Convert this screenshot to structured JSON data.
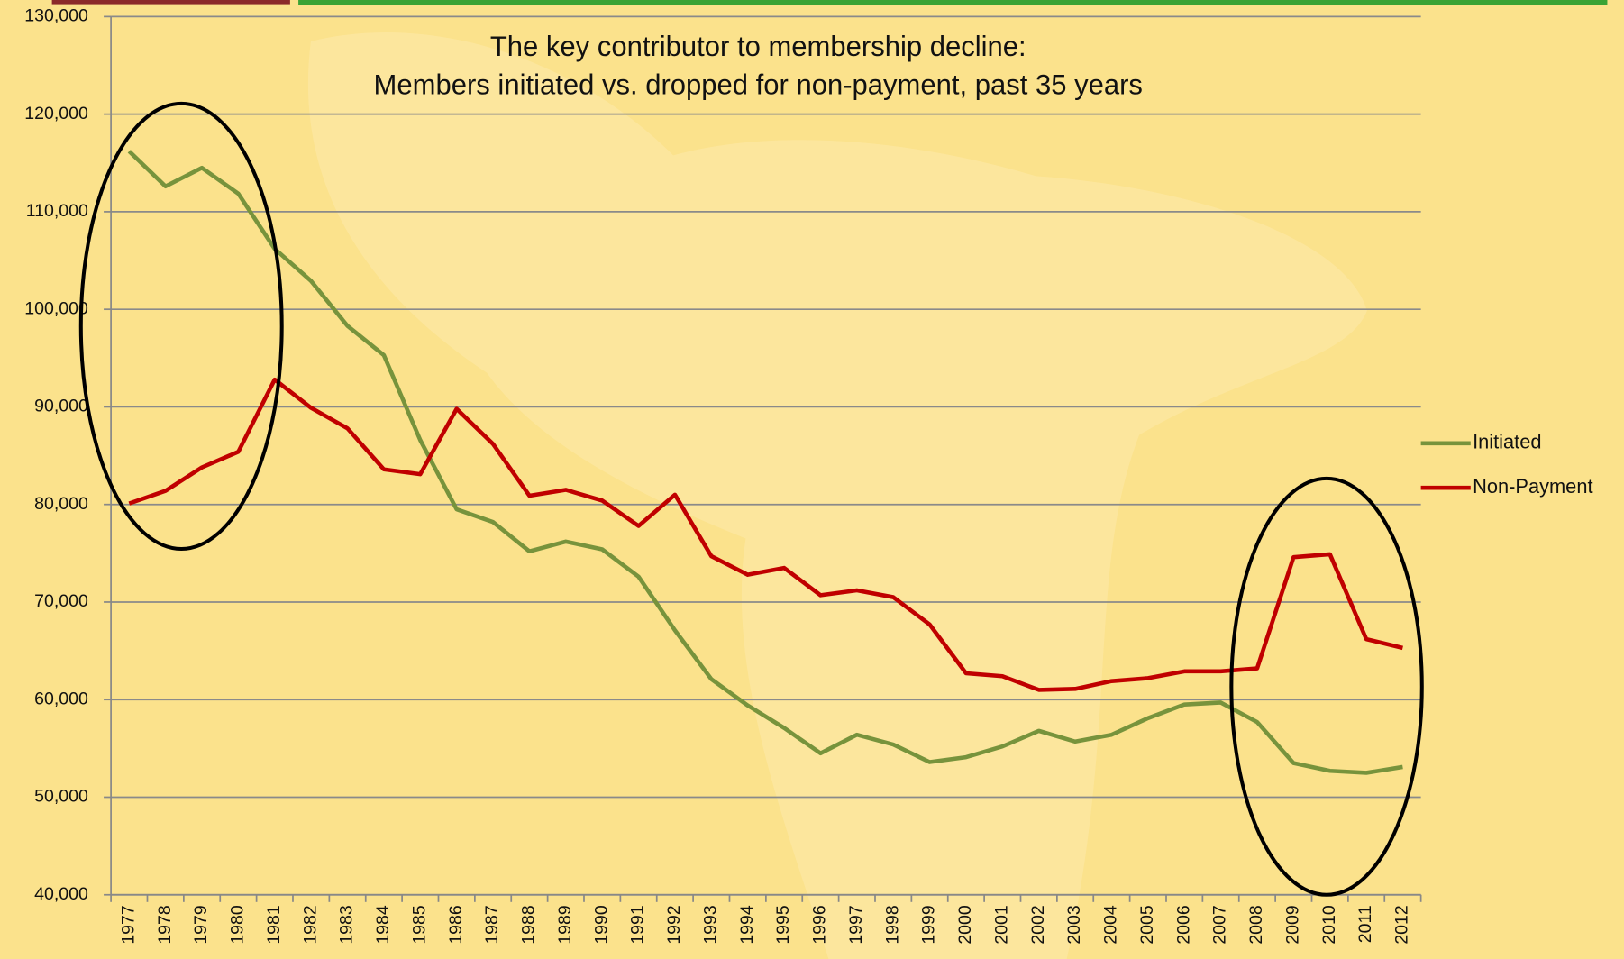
{
  "chart_data": {
    "type": "line",
    "title": "The key contributor to membership decline:",
    "subtitle": "Members initiated vs. dropped for non-payment, past 35 years",
    "categories": [
      "1977",
      "1978",
      "1979",
      "1980",
      "1981",
      "1982",
      "1983",
      "1984",
      "1985",
      "1986",
      "1987",
      "1988",
      "1989",
      "1990",
      "1991",
      "1992",
      "1993",
      "1994",
      "1995",
      "1996",
      "1997",
      "1998",
      "1999",
      "2000",
      "2001",
      "2002",
      "2003",
      "2004",
      "2005",
      "2006",
      "2007",
      "2008",
      "2009",
      "2010",
      "2011",
      "2012"
    ],
    "series": [
      {
        "name": "Initiated",
        "color": "#77933c",
        "values": [
          116200,
          112600,
          114500,
          111850,
          106200,
          102900,
          98300,
          95300,
          86600,
          79500,
          78200,
          75200,
          76200,
          75400,
          72600,
          67100,
          62100,
          59400,
          57100,
          54500,
          56400,
          55400,
          53600,
          54100,
          55200,
          56800,
          55700,
          56400,
          58100,
          59500,
          59700,
          57700,
          53500,
          52700,
          52500,
          53100
        ]
      },
      {
        "name": "Non-Payment",
        "color": "#c00000",
        "values": [
          80100,
          81400,
          83800,
          85400,
          92800,
          89900,
          87800,
          83600,
          83100,
          89800,
          86200,
          80900,
          81500,
          80400,
          77800,
          81000,
          74700,
          72800,
          73500,
          70700,
          71200,
          70500,
          67700,
          62700,
          62400,
          61000,
          61100,
          61900,
          62200,
          62900,
          62900,
          63200,
          74600,
          74900,
          66200,
          65300
        ]
      }
    ],
    "ylim": [
      40000,
      130000
    ],
    "yticks": [
      {
        "value": 40000,
        "label": "40,000"
      },
      {
        "value": 50000,
        "label": "50,000"
      },
      {
        "value": 60000,
        "label": "60,000"
      },
      {
        "value": 70000,
        "label": "70,000"
      },
      {
        "value": 80000,
        "label": "80,000"
      },
      {
        "value": 90000,
        "label": "90,000"
      },
      {
        "value": 100000,
        "label": "100,000"
      },
      {
        "value": 110000,
        "label": "110,000"
      },
      {
        "value": 120000,
        "label": "120,000"
      },
      {
        "value": 130000,
        "label": "130,000"
      }
    ],
    "grid": true,
    "legend": "right"
  }
}
